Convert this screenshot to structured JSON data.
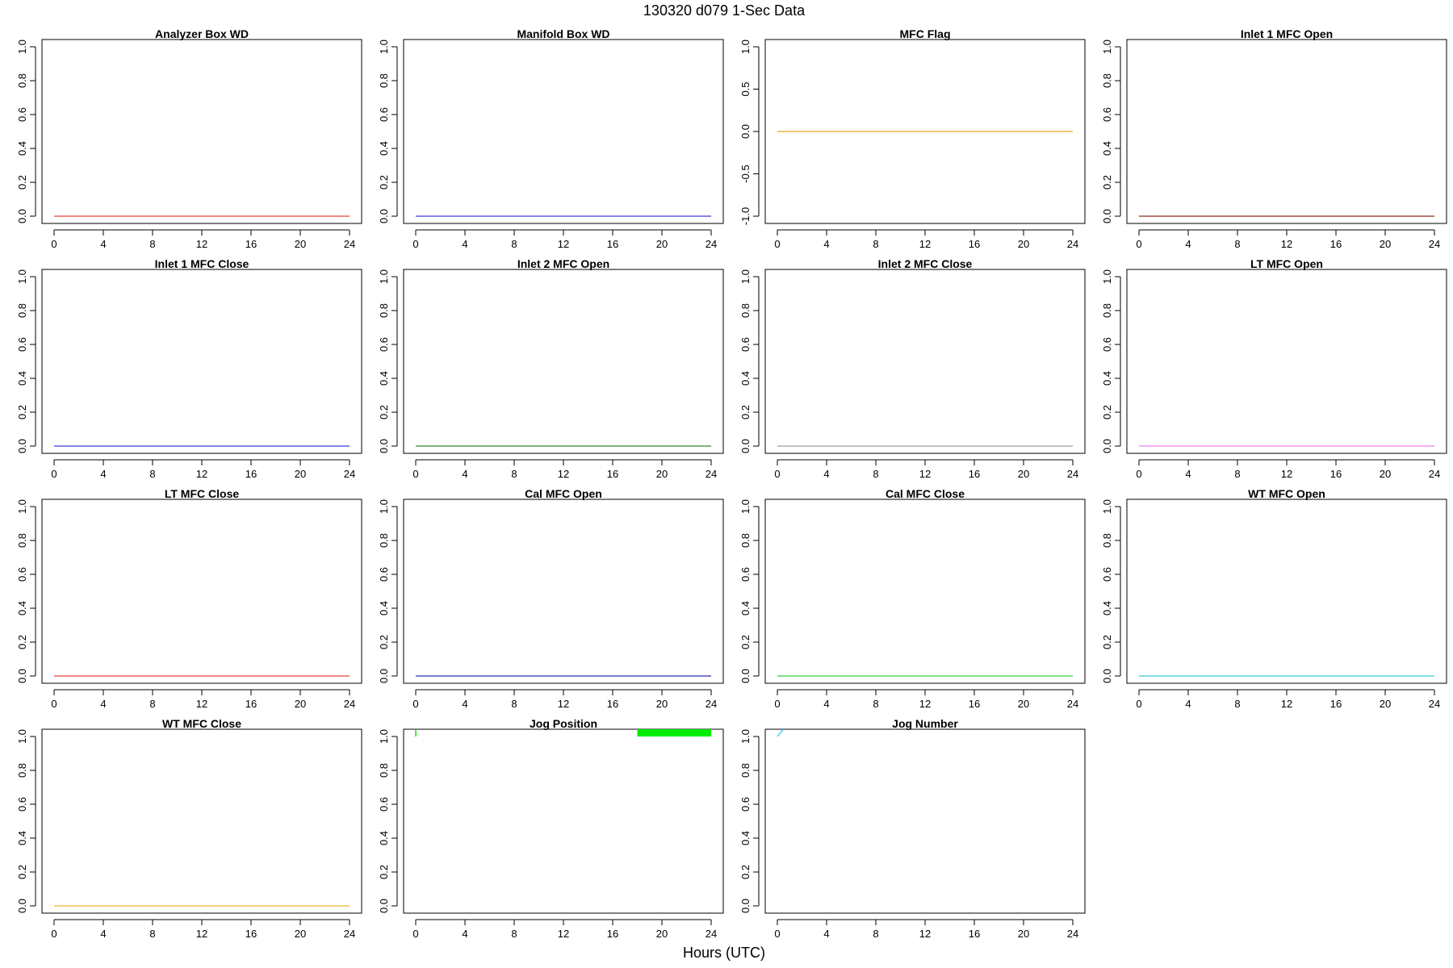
{
  "figure": {
    "title": "130320   d079   1-Sec Data",
    "xlabel": "Hours (UTC)"
  },
  "chart_data": [
    {
      "type": "line",
      "title": "Analyzer Box WD",
      "color": "#e8413b",
      "xlim": [
        0,
        24
      ],
      "ylim": [
        0,
        1
      ],
      "xticks": [
        "0",
        "4",
        "8",
        "12",
        "16",
        "20",
        "24"
      ],
      "yticks": [
        "0.0",
        "0.2",
        "0.4",
        "0.6",
        "0.8",
        "1.0"
      ],
      "series": [
        {
          "x": [
            0,
            24
          ],
          "y": [
            0,
            0
          ]
        }
      ]
    },
    {
      "type": "line",
      "title": "Manifold Box WD",
      "color": "#3a3ad6",
      "xlim": [
        0,
        24
      ],
      "ylim": [
        0,
        1
      ],
      "xticks": [
        "0",
        "4",
        "8",
        "12",
        "16",
        "20",
        "24"
      ],
      "yticks": [
        "0.0",
        "0.2",
        "0.4",
        "0.6",
        "0.8",
        "1.0"
      ],
      "series": [
        {
          "x": [
            0,
            24
          ],
          "y": [
            0,
            0
          ]
        }
      ]
    },
    {
      "type": "line",
      "title": "MFC Flag",
      "color": "#f0a020",
      "xlim": [
        0,
        24
      ],
      "ylim": [
        -1,
        1
      ],
      "xticks": [
        "0",
        "4",
        "8",
        "12",
        "16",
        "20",
        "24"
      ],
      "yticks": [
        "-1.0",
        "-0.5",
        "0.0",
        "0.5",
        "1.0"
      ],
      "series": [
        {
          "x": [
            0,
            24
          ],
          "y": [
            0,
            0
          ]
        }
      ]
    },
    {
      "type": "line",
      "title": "Inlet 1 MFC Open",
      "color": "#8b2a1a",
      "xlim": [
        0,
        24
      ],
      "ylim": [
        0,
        1
      ],
      "xticks": [
        "0",
        "4",
        "8",
        "12",
        "16",
        "20",
        "24"
      ],
      "yticks": [
        "0.0",
        "0.2",
        "0.4",
        "0.6",
        "0.8",
        "1.0"
      ],
      "series": [
        {
          "x": [
            0,
            24
          ],
          "y": [
            0,
            0
          ]
        }
      ]
    },
    {
      "type": "line",
      "title": "Inlet 1 MFC Close",
      "color": "#3a3ad6",
      "xlim": [
        0,
        24
      ],
      "ylim": [
        0,
        1
      ],
      "xticks": [
        "0",
        "4",
        "8",
        "12",
        "16",
        "20",
        "24"
      ],
      "yticks": [
        "0.0",
        "0.2",
        "0.4",
        "0.6",
        "0.8",
        "1.0"
      ],
      "series": [
        {
          "x": [
            0,
            24
          ],
          "y": [
            0,
            0
          ]
        }
      ]
    },
    {
      "type": "line",
      "title": "Inlet 2 MFC Open",
      "color": "#2a8a2a",
      "xlim": [
        0,
        24
      ],
      "ylim": [
        0,
        1
      ],
      "xticks": [
        "0",
        "4",
        "8",
        "12",
        "16",
        "20",
        "24"
      ],
      "yticks": [
        "0.0",
        "0.2",
        "0.4",
        "0.6",
        "0.8",
        "1.0"
      ],
      "series": [
        {
          "x": [
            0,
            24
          ],
          "y": [
            0,
            0
          ]
        }
      ]
    },
    {
      "type": "line",
      "title": "Inlet 2 MFC Close",
      "color": "#9a9a9a",
      "xlim": [
        0,
        24
      ],
      "ylim": [
        0,
        1
      ],
      "xticks": [
        "0",
        "4",
        "8",
        "12",
        "16",
        "20",
        "24"
      ],
      "yticks": [
        "0.0",
        "0.2",
        "0.4",
        "0.6",
        "0.8",
        "1.0"
      ],
      "series": [
        {
          "x": [
            0,
            24
          ],
          "y": [
            0,
            0
          ]
        }
      ]
    },
    {
      "type": "line",
      "title": "LT MFC Open",
      "color": "#ee82ee",
      "xlim": [
        0,
        24
      ],
      "ylim": [
        0,
        1
      ],
      "xticks": [
        "0",
        "4",
        "8",
        "12",
        "16",
        "20",
        "24"
      ],
      "yticks": [
        "0.0",
        "0.2",
        "0.4",
        "0.6",
        "0.8",
        "1.0"
      ],
      "series": [
        {
          "x": [
            0,
            24
          ],
          "y": [
            0,
            0
          ]
        }
      ]
    },
    {
      "type": "line",
      "title": "LT MFC Close",
      "color": "#e8413b",
      "xlim": [
        0,
        24
      ],
      "ylim": [
        0,
        1
      ],
      "xticks": [
        "0",
        "4",
        "8",
        "12",
        "16",
        "20",
        "24"
      ],
      "yticks": [
        "0.0",
        "0.2",
        "0.4",
        "0.6",
        "0.8",
        "1.0"
      ],
      "series": [
        {
          "x": [
            0,
            24
          ],
          "y": [
            0,
            0
          ]
        }
      ]
    },
    {
      "type": "line",
      "title": "Cal MFC Open",
      "color": "#2a2aa8",
      "xlim": [
        0,
        24
      ],
      "ylim": [
        0,
        1
      ],
      "xticks": [
        "0",
        "4",
        "8",
        "12",
        "16",
        "20",
        "24"
      ],
      "yticks": [
        "0.0",
        "0.2",
        "0.4",
        "0.6",
        "0.8",
        "1.0"
      ],
      "series": [
        {
          "x": [
            0,
            24
          ],
          "y": [
            0,
            0
          ]
        }
      ]
    },
    {
      "type": "line",
      "title": "Cal MFC Close",
      "color": "#33cc33",
      "xlim": [
        0,
        24
      ],
      "ylim": [
        0,
        1
      ],
      "xticks": [
        "0",
        "4",
        "8",
        "12",
        "16",
        "20",
        "24"
      ],
      "yticks": [
        "0.0",
        "0.2",
        "0.4",
        "0.6",
        "0.8",
        "1.0"
      ],
      "series": [
        {
          "x": [
            0,
            24
          ],
          "y": [
            0,
            0
          ]
        }
      ]
    },
    {
      "type": "line",
      "title": "WT MFC Open",
      "color": "#33c8d8",
      "xlim": [
        0,
        24
      ],
      "ylim": [
        0,
        1
      ],
      "xticks": [
        "0",
        "4",
        "8",
        "12",
        "16",
        "20",
        "24"
      ],
      "yticks": [
        "0.0",
        "0.2",
        "0.4",
        "0.6",
        "0.8",
        "1.0"
      ],
      "series": [
        {
          "x": [
            0,
            24
          ],
          "y": [
            0,
            0
          ]
        }
      ]
    },
    {
      "type": "line",
      "title": "WT MFC Close",
      "color": "#f0b030",
      "xlim": [
        0,
        24
      ],
      "ylim": [
        0,
        1
      ],
      "xticks": [
        "0",
        "4",
        "8",
        "12",
        "16",
        "20",
        "24"
      ],
      "yticks": [
        "0.0",
        "0.2",
        "0.4",
        "0.6",
        "0.8",
        "1.0"
      ],
      "series": [
        {
          "x": [
            0,
            24
          ],
          "y": [
            0,
            0
          ]
        }
      ]
    },
    {
      "type": "line",
      "title": "Jog Position",
      "color": "#00ee00",
      "xlim": [
        0,
        24
      ],
      "ylim": [
        0,
        1
      ],
      "xticks": [
        "0",
        "4",
        "8",
        "12",
        "16",
        "20",
        "24"
      ],
      "yticks": [
        "0.0",
        "0.2",
        "0.4",
        "0.6",
        "0.8",
        "1.0"
      ],
      "series": [
        {
          "x": [
            0,
            0,
            0.02
          ],
          "y": [
            1.0,
            1.06,
            1.0
          ]
        }
      ],
      "band": {
        "x0": 18.0,
        "x1": 24.0,
        "y0": 1.0,
        "y1": 1.06
      }
    },
    {
      "type": "line",
      "title": "Jog Number",
      "color": "#33c8f0",
      "xlim": [
        0,
        24
      ],
      "ylim": [
        0,
        1
      ],
      "xticks": [
        "0",
        "4",
        "8",
        "12",
        "16",
        "20",
        "24"
      ],
      "yticks": [
        "0.0",
        "0.2",
        "0.4",
        "0.6",
        "0.8",
        "1.0"
      ],
      "series": [
        {
          "x": [
            0,
            0.7
          ],
          "y": [
            1.0,
            1.06
          ]
        }
      ]
    }
  ]
}
